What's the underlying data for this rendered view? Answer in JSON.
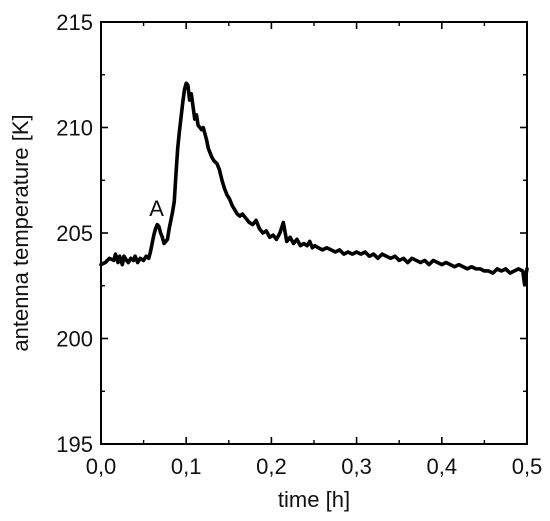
{
  "chart_data": {
    "type": "line",
    "title": "",
    "xlabel": "time [h]",
    "ylabel": "antenna temperature [K]",
    "xlim": [
      0.0,
      0.5
    ],
    "ylim": [
      195,
      215
    ],
    "x_ticks": [
      0.0,
      0.1,
      0.2,
      0.3,
      0.4,
      0.5
    ],
    "x_tick_labels": [
      "0,0",
      "0,1",
      "0,2",
      "0,3",
      "0,4",
      "0,5"
    ],
    "y_ticks": [
      195,
      200,
      205,
      210,
      215
    ],
    "y_tick_labels": [
      "195",
      "200",
      "205",
      "210",
      "215"
    ],
    "grid": false,
    "legend": "none",
    "line_color": "#000000",
    "annotations": [
      {
        "text": "A",
        "x": 0.066,
        "y": 206.0
      }
    ],
    "series": [
      {
        "x": [
          0.0,
          0.005,
          0.01,
          0.015,
          0.017,
          0.02,
          0.022,
          0.025,
          0.027,
          0.03,
          0.032,
          0.035,
          0.038,
          0.04,
          0.043,
          0.046,
          0.05,
          0.053,
          0.056,
          0.058,
          0.06,
          0.062,
          0.064,
          0.066,
          0.068,
          0.07,
          0.072,
          0.074,
          0.076,
          0.078,
          0.08,
          0.082,
          0.084,
          0.086,
          0.088,
          0.09,
          0.092,
          0.094,
          0.096,
          0.098,
          0.1,
          0.102,
          0.104,
          0.106,
          0.108,
          0.11,
          0.112,
          0.114,
          0.116,
          0.118,
          0.12,
          0.122,
          0.124,
          0.126,
          0.128,
          0.13,
          0.133,
          0.136,
          0.139,
          0.142,
          0.145,
          0.148,
          0.151,
          0.154,
          0.157,
          0.16,
          0.163,
          0.166,
          0.17,
          0.174,
          0.178,
          0.182,
          0.186,
          0.19,
          0.194,
          0.198,
          0.202,
          0.206,
          0.21,
          0.214,
          0.218,
          0.222,
          0.226,
          0.23,
          0.234,
          0.238,
          0.242,
          0.245,
          0.248,
          0.251,
          0.255,
          0.26,
          0.265,
          0.27,
          0.275,
          0.28,
          0.285,
          0.29,
          0.295,
          0.3,
          0.305,
          0.31,
          0.315,
          0.32,
          0.325,
          0.33,
          0.335,
          0.34,
          0.345,
          0.35,
          0.355,
          0.36,
          0.365,
          0.37,
          0.375,
          0.38,
          0.385,
          0.39,
          0.395,
          0.4,
          0.405,
          0.41,
          0.415,
          0.42,
          0.425,
          0.43,
          0.435,
          0.44,
          0.445,
          0.45,
          0.455,
          0.46,
          0.465,
          0.47,
          0.475,
          0.48,
          0.485,
          0.49,
          0.495,
          0.497,
          0.5
        ],
        "y": [
          203.5,
          203.6,
          203.8,
          203.7,
          204.0,
          203.6,
          203.9,
          203.5,
          203.9,
          203.7,
          203.6,
          203.8,
          203.7,
          203.9,
          203.6,
          203.8,
          203.7,
          203.9,
          203.8,
          204.1,
          204.5,
          204.9,
          205.2,
          205.4,
          205.3,
          205.0,
          204.8,
          204.5,
          204.6,
          204.7,
          205.2,
          205.6,
          206.0,
          206.5,
          207.8,
          209.0,
          209.8,
          210.5,
          211.2,
          211.8,
          212.1,
          212.0,
          211.3,
          211.6,
          211.0,
          210.4,
          210.6,
          210.1,
          210.0,
          209.9,
          210.0,
          209.7,
          209.4,
          209.0,
          208.8,
          208.6,
          208.4,
          208.3,
          208.0,
          207.5,
          207.1,
          206.8,
          206.6,
          206.3,
          206.1,
          205.9,
          205.8,
          205.9,
          205.7,
          205.5,
          205.4,
          205.6,
          205.2,
          205.0,
          205.1,
          204.8,
          204.9,
          204.7,
          205.0,
          205.5,
          204.6,
          204.8,
          204.5,
          204.7,
          204.4,
          204.5,
          204.4,
          204.6,
          204.3,
          204.4,
          204.3,
          204.2,
          204.3,
          204.2,
          204.1,
          204.2,
          204.0,
          204.1,
          204.0,
          204.1,
          204.0,
          204.1,
          203.9,
          204.0,
          203.8,
          204.0,
          203.9,
          203.8,
          203.9,
          203.7,
          203.8,
          203.6,
          203.8,
          203.7,
          203.6,
          203.7,
          203.5,
          203.7,
          203.6,
          203.5,
          203.6,
          203.5,
          203.4,
          203.5,
          203.4,
          203.3,
          203.4,
          203.3,
          203.3,
          203.2,
          203.2,
          203.1,
          203.3,
          203.2,
          203.3,
          203.1,
          203.2,
          203.3,
          203.2,
          202.6,
          203.3
        ]
      }
    ]
  }
}
